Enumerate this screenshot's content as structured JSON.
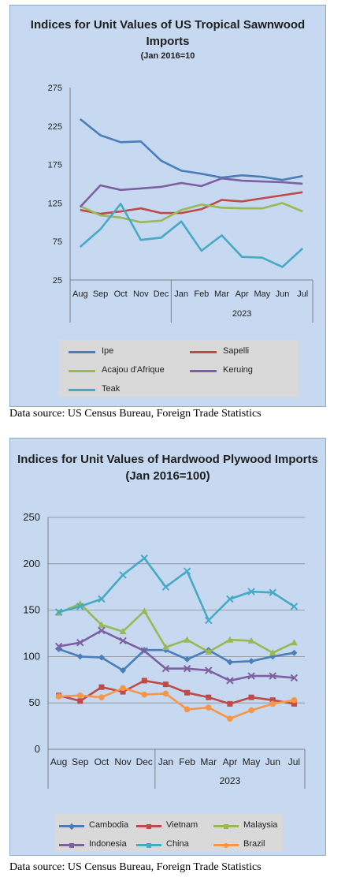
{
  "charts": [
    {
      "title": "Indices for Unit Values of US Tropical Sawnwood Imports",
      "subtitle": "(Jan 2016=10",
      "source": "Data source: US Census Bureau, Foreign Trade Statistics"
    },
    {
      "title": "Indices for Unit Values of Hardwood Plywood Imports (Jan 2016=100)",
      "source": "Data source: US Census Bureau, Foreign Trade Statistics"
    }
  ],
  "chart_data": [
    {
      "type": "line",
      "title": "Indices for Unit Values of US Tropical Sawnwood Imports",
      "subtitle": "(Jan 2016=10",
      "categories": [
        "Aug",
        "Sep",
        "Oct",
        "Nov",
        "Dec",
        "Jan",
        "Feb",
        "Mar",
        "Apr",
        "May",
        "Jun",
        "Jul"
      ],
      "year_label": "2023",
      "xlabel": "",
      "ylabel": "",
      "ylim": [
        25,
        275
      ],
      "yticks": [
        25,
        75,
        125,
        175,
        225,
        275
      ],
      "grid": false,
      "legend": "bottom",
      "series": [
        {
          "name": "Ipe",
          "color": "#4a7ebb",
          "values": [
            234,
            213,
            204,
            205,
            180,
            167,
            163,
            158,
            161,
            159,
            155,
            160
          ]
        },
        {
          "name": "Sapelli",
          "color": "#be4b48",
          "values": [
            116,
            111,
            114,
            118,
            112,
            112,
            117,
            129,
            127,
            131,
            135,
            139
          ]
        },
        {
          "name": "Acajou d'Afrique",
          "color": "#98b954",
          "values": [
            121,
            109,
            106,
            100,
            102,
            116,
            123,
            119,
            118,
            118,
            125,
            114
          ]
        },
        {
          "name": "Keruing",
          "color": "#7d60a0",
          "values": [
            120,
            148,
            142,
            144,
            146,
            151,
            147,
            157,
            154,
            153,
            152,
            150
          ]
        },
        {
          "name": "Teak",
          "color": "#46aac5",
          "values": [
            68,
            91,
            124,
            77,
            80,
            101,
            63,
            83,
            55,
            54,
            42,
            66
          ]
        }
      ]
    },
    {
      "type": "line",
      "title": "Indices for Unit Values of Hardwood Plywood Imports (Jan 2016=100)",
      "categories": [
        "Aug",
        "Sep",
        "Oct",
        "Nov",
        "Dec",
        "Jan",
        "Feb",
        "Mar",
        "Apr",
        "May",
        "Jun",
        "Jul"
      ],
      "year_label": "2023",
      "xlabel": "",
      "ylabel": "",
      "ylim": [
        0,
        250
      ],
      "yticks": [
        0,
        50,
        100,
        150,
        200,
        250
      ],
      "grid": true,
      "legend": "bottom",
      "series": [
        {
          "name": "Cambodia",
          "color": "#4a7ebb",
          "marker": "diamond",
          "values": [
            108,
            100,
            99,
            85,
            107,
            107,
            97,
            107,
            94,
            95,
            100,
            104
          ]
        },
        {
          "name": "Vietnam",
          "color": "#be4b48",
          "marker": "square",
          "values": [
            58,
            52,
            67,
            62,
            74,
            70,
            61,
            56,
            49,
            56,
            53,
            49
          ]
        },
        {
          "name": "Malaysia",
          "color": "#98b954",
          "marker": "triangle",
          "values": [
            147,
            157,
            134,
            127,
            149,
            110,
            118,
            105,
            118,
            117,
            104,
            115
          ]
        },
        {
          "name": "Indonesia",
          "color": "#7d60a0",
          "marker": "x",
          "values": [
            111,
            115,
            128,
            117,
            106,
            87,
            87,
            85,
            74,
            79,
            79,
            77
          ]
        },
        {
          "name": "China",
          "color": "#46aac5",
          "marker": "x",
          "values": [
            148,
            154,
            162,
            188,
            206,
            175,
            192,
            139,
            162,
            170,
            169,
            154
          ]
        },
        {
          "name": "Brazil",
          "color": "#f79646",
          "marker": "circle",
          "values": [
            57,
            58,
            56,
            66,
            59,
            60,
            43,
            45,
            33,
            42,
            49,
            53
          ]
        }
      ]
    }
  ]
}
